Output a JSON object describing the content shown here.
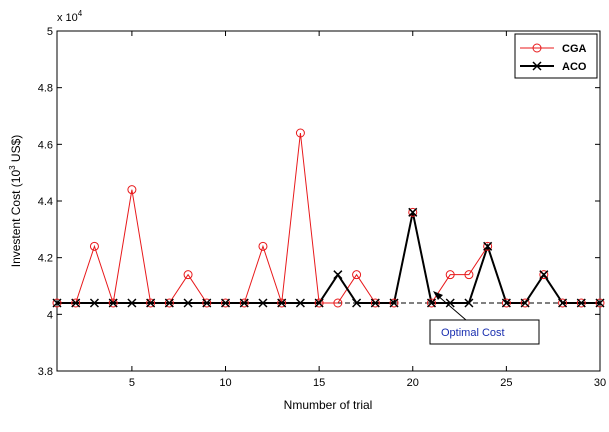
{
  "chart_data": {
    "type": "line",
    "title": "",
    "xlabel": "Nmumber of trial",
    "ylabel": "Investent Cost (10",
    "ylabel_sup": "3",
    "ylabel_suffix": " US$)",
    "y_multiplier": "x 10",
    "y_multiplier_exp": "4",
    "xlim": [
      1,
      30
    ],
    "ylim": [
      38000,
      50000
    ],
    "xticks": [
      5,
      10,
      15,
      20,
      25,
      30
    ],
    "xtick_labels": [
      "5",
      "10",
      "15",
      "20",
      "25",
      "30"
    ],
    "yticks": [
      38000,
      40000,
      42000,
      44000,
      46000,
      48000,
      50000
    ],
    "ytick_labels": [
      "3.8",
      "4",
      "4.2",
      "4.4",
      "4.6",
      "4.8",
      "5"
    ],
    "grid": false,
    "legend_position": "top-right",
    "x": [
      1,
      2,
      3,
      4,
      5,
      6,
      7,
      8,
      9,
      10,
      11,
      12,
      13,
      14,
      15,
      16,
      17,
      18,
      19,
      20,
      21,
      22,
      23,
      24,
      25,
      26,
      27,
      28,
      29,
      30
    ],
    "series": [
      {
        "name": "CGA",
        "color": "#e8191b",
        "marker": "circle",
        "values": [
          40400,
          40400,
          42400,
          40400,
          44400,
          40400,
          40400,
          41400,
          40400,
          40400,
          40400,
          42400,
          40400,
          46400,
          40400,
          40400,
          41400,
          40400,
          40400,
          43600,
          40400,
          41400,
          41400,
          42400,
          40400,
          40400,
          41400,
          40400,
          40400,
          40400
        ]
      },
      {
        "name": "ACO",
        "color": "#000000",
        "marker": "x",
        "values": [
          40400,
          40400,
          40400,
          40400,
          40400,
          40400,
          40400,
          40400,
          40400,
          40400,
          40400,
          40400,
          40400,
          40400,
          40400,
          41400,
          40400,
          40400,
          40400,
          43600,
          40400,
          40400,
          40400,
          42400,
          40400,
          40400,
          41400,
          40400,
          40400,
          40400
        ]
      }
    ],
    "reference_line": {
      "y": 40400,
      "style": "dashed",
      "color": "#000000"
    },
    "annotation": {
      "text": "Optimal Cost",
      "target_x": 20,
      "target_y": 40400,
      "color": "#1a2fb0"
    }
  }
}
